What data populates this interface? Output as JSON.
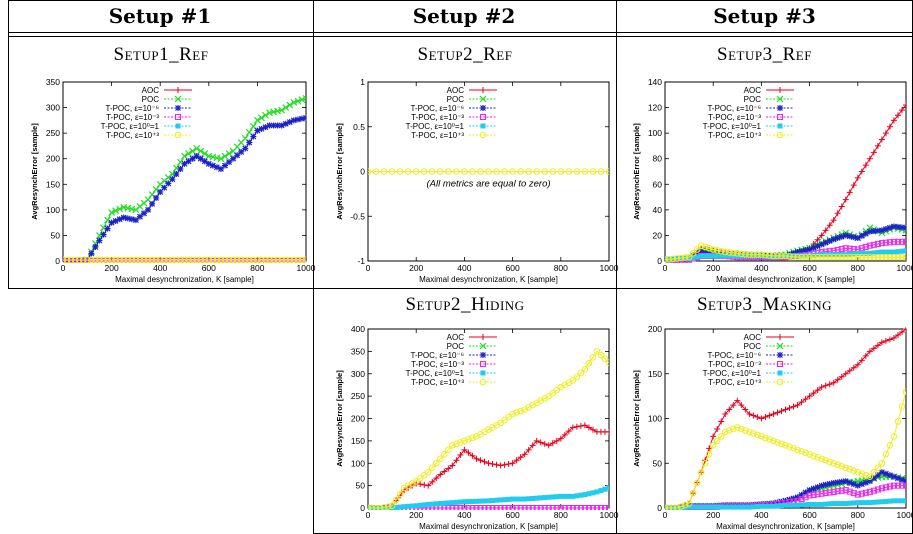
{
  "headers": [
    "Setup #1",
    "Setup #2",
    "Setup #3"
  ],
  "legend_entries": [
    "AOC",
    "POC",
    "T-POC, ε=10⁻⁶",
    "T-POC, ε=10⁻³",
    "T-POC, ε=10⁰=1",
    "T-POC, ε=10⁺³"
  ],
  "series_colors": [
    "#e8001c",
    "#22dd22",
    "#1c22c8",
    "#ee22ee",
    "#22ccee",
    "#eeee22"
  ],
  "chart_data": [
    {
      "type": "line",
      "title": "Setup1_Ref",
      "xlabel": "Maximal desynchronization, K [sample]",
      "ylabel": "AvgResynchError [sample]",
      "xlim": [
        0,
        1000
      ],
      "ylim": [
        0,
        350
      ],
      "xticks": [
        0,
        200,
        400,
        600,
        800,
        1000
      ],
      "yticks": [
        0,
        50,
        100,
        150,
        200,
        250,
        300,
        350
      ],
      "x": [
        0,
        50,
        100,
        150,
        200,
        250,
        300,
        350,
        400,
        450,
        500,
        550,
        600,
        650,
        700,
        750,
        800,
        850,
        900,
        950,
        1000
      ],
      "series": [
        {
          "name": "POC",
          "values": [
            0,
            0,
            2,
            50,
            95,
            105,
            100,
            120,
            150,
            170,
            205,
            220,
            205,
            200,
            215,
            240,
            275,
            290,
            295,
            310,
            318
          ]
        },
        {
          "name": "T-POC, ε=10⁻⁶",
          "values": [
            0,
            0,
            2,
            40,
            75,
            85,
            80,
            100,
            135,
            160,
            190,
            205,
            190,
            180,
            200,
            220,
            255,
            265,
            265,
            275,
            280
          ]
        },
        {
          "name": "T-POC, ε=10⁻³",
          "values": [
            0,
            0,
            0,
            0,
            0,
            0,
            0,
            0,
            0,
            0,
            0,
            0,
            0,
            0,
            0,
            0,
            0,
            0,
            0,
            0,
            0
          ]
        },
        {
          "name": "T-POC, ε=10⁺³",
          "values": [
            2,
            2,
            2,
            2,
            2,
            2,
            2,
            2,
            2,
            2,
            2,
            2,
            2,
            2,
            2,
            2,
            2,
            2,
            2,
            2,
            2
          ]
        }
      ]
    },
    {
      "type": "line",
      "title": "Setup2_Ref",
      "xlabel": "Maximal desynchronization, K [sample]",
      "ylabel": "AvgResynchError [sample]",
      "xlim": [
        0,
        1000
      ],
      "ylim": [
        -1,
        1
      ],
      "xticks": [
        0,
        200,
        400,
        600,
        800,
        1000
      ],
      "yticks": [
        -1,
        -0.5,
        0,
        0.5,
        1
      ],
      "annotation": "(All metrics are equal to zero)",
      "x": [
        0,
        100,
        200,
        300,
        400,
        500,
        600,
        700,
        800,
        900,
        1000
      ],
      "series": [
        {
          "name": "T-POC, ε=10⁺³",
          "values": [
            0,
            0,
            0,
            0,
            0,
            0,
            0,
            0,
            0,
            0,
            0
          ]
        }
      ]
    },
    {
      "type": "line",
      "title": "Setup3_Ref",
      "xlabel": "Maximal desynchronization, K [sample]",
      "ylabel": "AvgResynchError [sample]",
      "xlim": [
        0,
        1000
      ],
      "ylim": [
        0,
        140
      ],
      "xticks": [
        0,
        200,
        400,
        600,
        800,
        1000
      ],
      "yticks": [
        0,
        20,
        40,
        60,
        80,
        100,
        120,
        140
      ],
      "x": [
        0,
        50,
        100,
        150,
        200,
        250,
        300,
        350,
        400,
        450,
        500,
        550,
        600,
        650,
        700,
        750,
        800,
        850,
        900,
        950,
        1000
      ],
      "series": [
        {
          "name": "AOC",
          "values": [
            1,
            1,
            2,
            10,
            8,
            6,
            5,
            4,
            4,
            3,
            3,
            6,
            10,
            20,
            32,
            48,
            65,
            80,
            95,
            110,
            122
          ]
        },
        {
          "name": "POC",
          "values": [
            1,
            1,
            2,
            9,
            8,
            6,
            5,
            5,
            4,
            4,
            5,
            8,
            10,
            14,
            18,
            22,
            18,
            26,
            22,
            26,
            24
          ]
        },
        {
          "name": "T-POC, ε=10⁻⁶",
          "values": [
            1,
            1,
            2,
            7,
            5,
            5,
            4,
            4,
            4,
            4,
            4,
            7,
            9,
            13,
            17,
            20,
            18,
            23,
            24,
            27,
            26
          ]
        },
        {
          "name": "T-POC, ε=10⁻³",
          "values": [
            1,
            1,
            1,
            4,
            4,
            4,
            3,
            3,
            3,
            3,
            3,
            4,
            5,
            7,
            8,
            10,
            9,
            12,
            14,
            15,
            15
          ]
        },
        {
          "name": "T-POC, ε=10⁰=1",
          "values": [
            1,
            2,
            2,
            4,
            4,
            4,
            4,
            4,
            4,
            3,
            4,
            4,
            4,
            5,
            5,
            5,
            6,
            6,
            7,
            7,
            8
          ]
        },
        {
          "name": "T-POC, ε=10⁺³",
          "values": [
            1,
            2,
            3,
            12,
            9,
            7,
            6,
            5,
            5,
            4,
            4,
            3,
            3,
            3,
            3,
            3,
            3,
            3,
            3,
            3,
            3
          ]
        }
      ]
    },
    {
      "type": "line",
      "title": "Setup2_Hiding",
      "xlabel": "Maximal desynchronization, K [sample]",
      "ylabel": "AvgResynchError [sample]",
      "xlim": [
        0,
        1000
      ],
      "ylim": [
        0,
        400
      ],
      "xticks": [
        0,
        200,
        400,
        600,
        800,
        1000
      ],
      "yticks": [
        0,
        50,
        100,
        150,
        200,
        250,
        300,
        350,
        400
      ],
      "x": [
        0,
        50,
        100,
        150,
        200,
        250,
        300,
        350,
        400,
        450,
        500,
        550,
        600,
        650,
        700,
        750,
        800,
        850,
        900,
        950,
        1000
      ],
      "series": [
        {
          "name": "AOC",
          "values": [
            0,
            0,
            5,
            40,
            55,
            50,
            75,
            95,
            130,
            110,
            100,
            95,
            100,
            120,
            150,
            140,
            155,
            180,
            185,
            170,
            170
          ]
        },
        {
          "name": "T-POC, ε=10⁻³",
          "values": [
            0,
            0,
            0,
            0,
            0,
            0,
            0,
            0,
            0,
            0,
            0,
            0,
            0,
            0,
            0,
            0,
            0,
            0,
            0,
            0,
            0
          ]
        },
        {
          "name": "T-POC, ε=10⁰=1",
          "values": [
            0,
            0,
            0,
            3,
            5,
            8,
            10,
            12,
            14,
            15,
            16,
            18,
            20,
            20,
            22,
            24,
            26,
            26,
            30,
            36,
            45
          ]
        },
        {
          "name": "T-POC, ε=10⁺³",
          "values": [
            0,
            0,
            5,
            45,
            60,
            80,
            110,
            140,
            150,
            160,
            175,
            190,
            210,
            220,
            235,
            250,
            270,
            285,
            310,
            350,
            325
          ]
        }
      ]
    },
    {
      "type": "line",
      "title": "Setup3_Masking",
      "xlabel": "Maximal desynchronization, K [sample]",
      "ylabel": "AvgResynchError [sample]",
      "xlim": [
        0,
        1000
      ],
      "ylim": [
        0,
        200
      ],
      "xticks": [
        0,
        200,
        400,
        600,
        800,
        1000
      ],
      "yticks": [
        0,
        50,
        100,
        150,
        200
      ],
      "x": [
        0,
        50,
        100,
        150,
        200,
        250,
        300,
        350,
        400,
        450,
        500,
        550,
        600,
        650,
        700,
        750,
        800,
        850,
        900,
        950,
        1000
      ],
      "series": [
        {
          "name": "AOC",
          "values": [
            0,
            0,
            5,
            40,
            80,
            105,
            120,
            105,
            100,
            105,
            110,
            115,
            125,
            135,
            140,
            150,
            160,
            175,
            185,
            190,
            200
          ]
        },
        {
          "name": "POC",
          "values": [
            0,
            0,
            2,
            2,
            2,
            3,
            3,
            3,
            4,
            5,
            8,
            10,
            18,
            22,
            25,
            28,
            30,
            32,
            35,
            35,
            32
          ]
        },
        {
          "name": "T-POC, ε=10⁻⁶",
          "values": [
            0,
            0,
            2,
            2,
            2,
            3,
            3,
            3,
            4,
            5,
            8,
            12,
            20,
            25,
            28,
            30,
            25,
            30,
            40,
            35,
            30
          ]
        },
        {
          "name": "T-POC, ε=10⁻³",
          "values": [
            0,
            0,
            1,
            1,
            1,
            2,
            2,
            2,
            3,
            4,
            6,
            8,
            14,
            16,
            18,
            20,
            15,
            18,
            22,
            25,
            25
          ]
        },
        {
          "name": "T-POC, ε=10⁰=1",
          "values": [
            0,
            0,
            1,
            1,
            1,
            1,
            1,
            1,
            2,
            2,
            3,
            3,
            4,
            4,
            5,
            5,
            6,
            6,
            7,
            8,
            8
          ]
        },
        {
          "name": "T-POC, ε=10⁺³",
          "values": [
            0,
            0,
            5,
            40,
            70,
            85,
            90,
            85,
            80,
            75,
            70,
            65,
            60,
            55,
            50,
            45,
            40,
            35,
            50,
            80,
            130
          ]
        }
      ]
    }
  ]
}
